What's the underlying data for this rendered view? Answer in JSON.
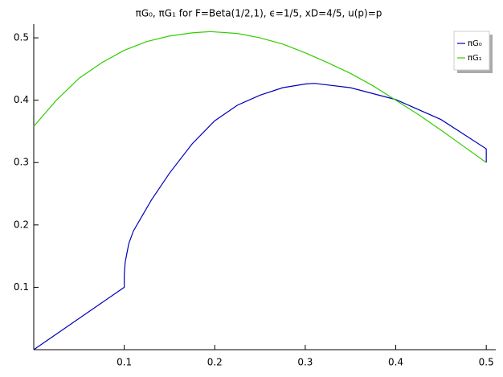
{
  "chart_data": {
    "type": "line",
    "title": "πG₀, πG₁ for F=Beta(1/2,1), ϵ=1/5, xD=4/5, u(p)=p",
    "xlim": [
      0,
      0.5105
    ],
    "ylim": [
      0,
      0.522
    ],
    "xticks": [
      0.1,
      0.2,
      0.3,
      0.4,
      0.5
    ],
    "yticks": [
      0.1,
      0.2,
      0.3,
      0.4,
      0.5
    ],
    "legend": "upper right",
    "series": [
      {
        "name": "πG₀",
        "color": "#0000bb",
        "x": [
          0,
          0.1,
          0.1,
          0.101,
          0.105,
          0.11,
          0.12,
          0.13,
          0.15,
          0.175,
          0.2,
          0.225,
          0.25,
          0.275,
          0.3,
          0.31,
          0.35,
          0.4,
          0.45,
          0.5,
          0.5
        ],
        "values": [
          0,
          0.1,
          0.12,
          0.14,
          0.17,
          0.19,
          0.215,
          0.24,
          0.283,
          0.33,
          0.367,
          0.392,
          0.408,
          0.42,
          0.426,
          0.427,
          0.42,
          0.401,
          0.369,
          0.322,
          0.3
        ]
      },
      {
        "name": "πG₁",
        "color": "#33cc00",
        "x": [
          0,
          0.025,
          0.05,
          0.075,
          0.1,
          0.125,
          0.15,
          0.175,
          0.195,
          0.225,
          0.25,
          0.275,
          0.3,
          0.325,
          0.35,
          0.375,
          0.4,
          0.425,
          0.45,
          0.475,
          0.5
        ],
        "values": [
          0.358,
          0.4,
          0.435,
          0.46,
          0.48,
          0.494,
          0.503,
          0.508,
          0.51,
          0.507,
          0.5,
          0.49,
          0.476,
          0.46,
          0.443,
          0.423,
          0.4,
          0.377,
          0.352,
          0.326,
          0.3
        ]
      }
    ]
  }
}
